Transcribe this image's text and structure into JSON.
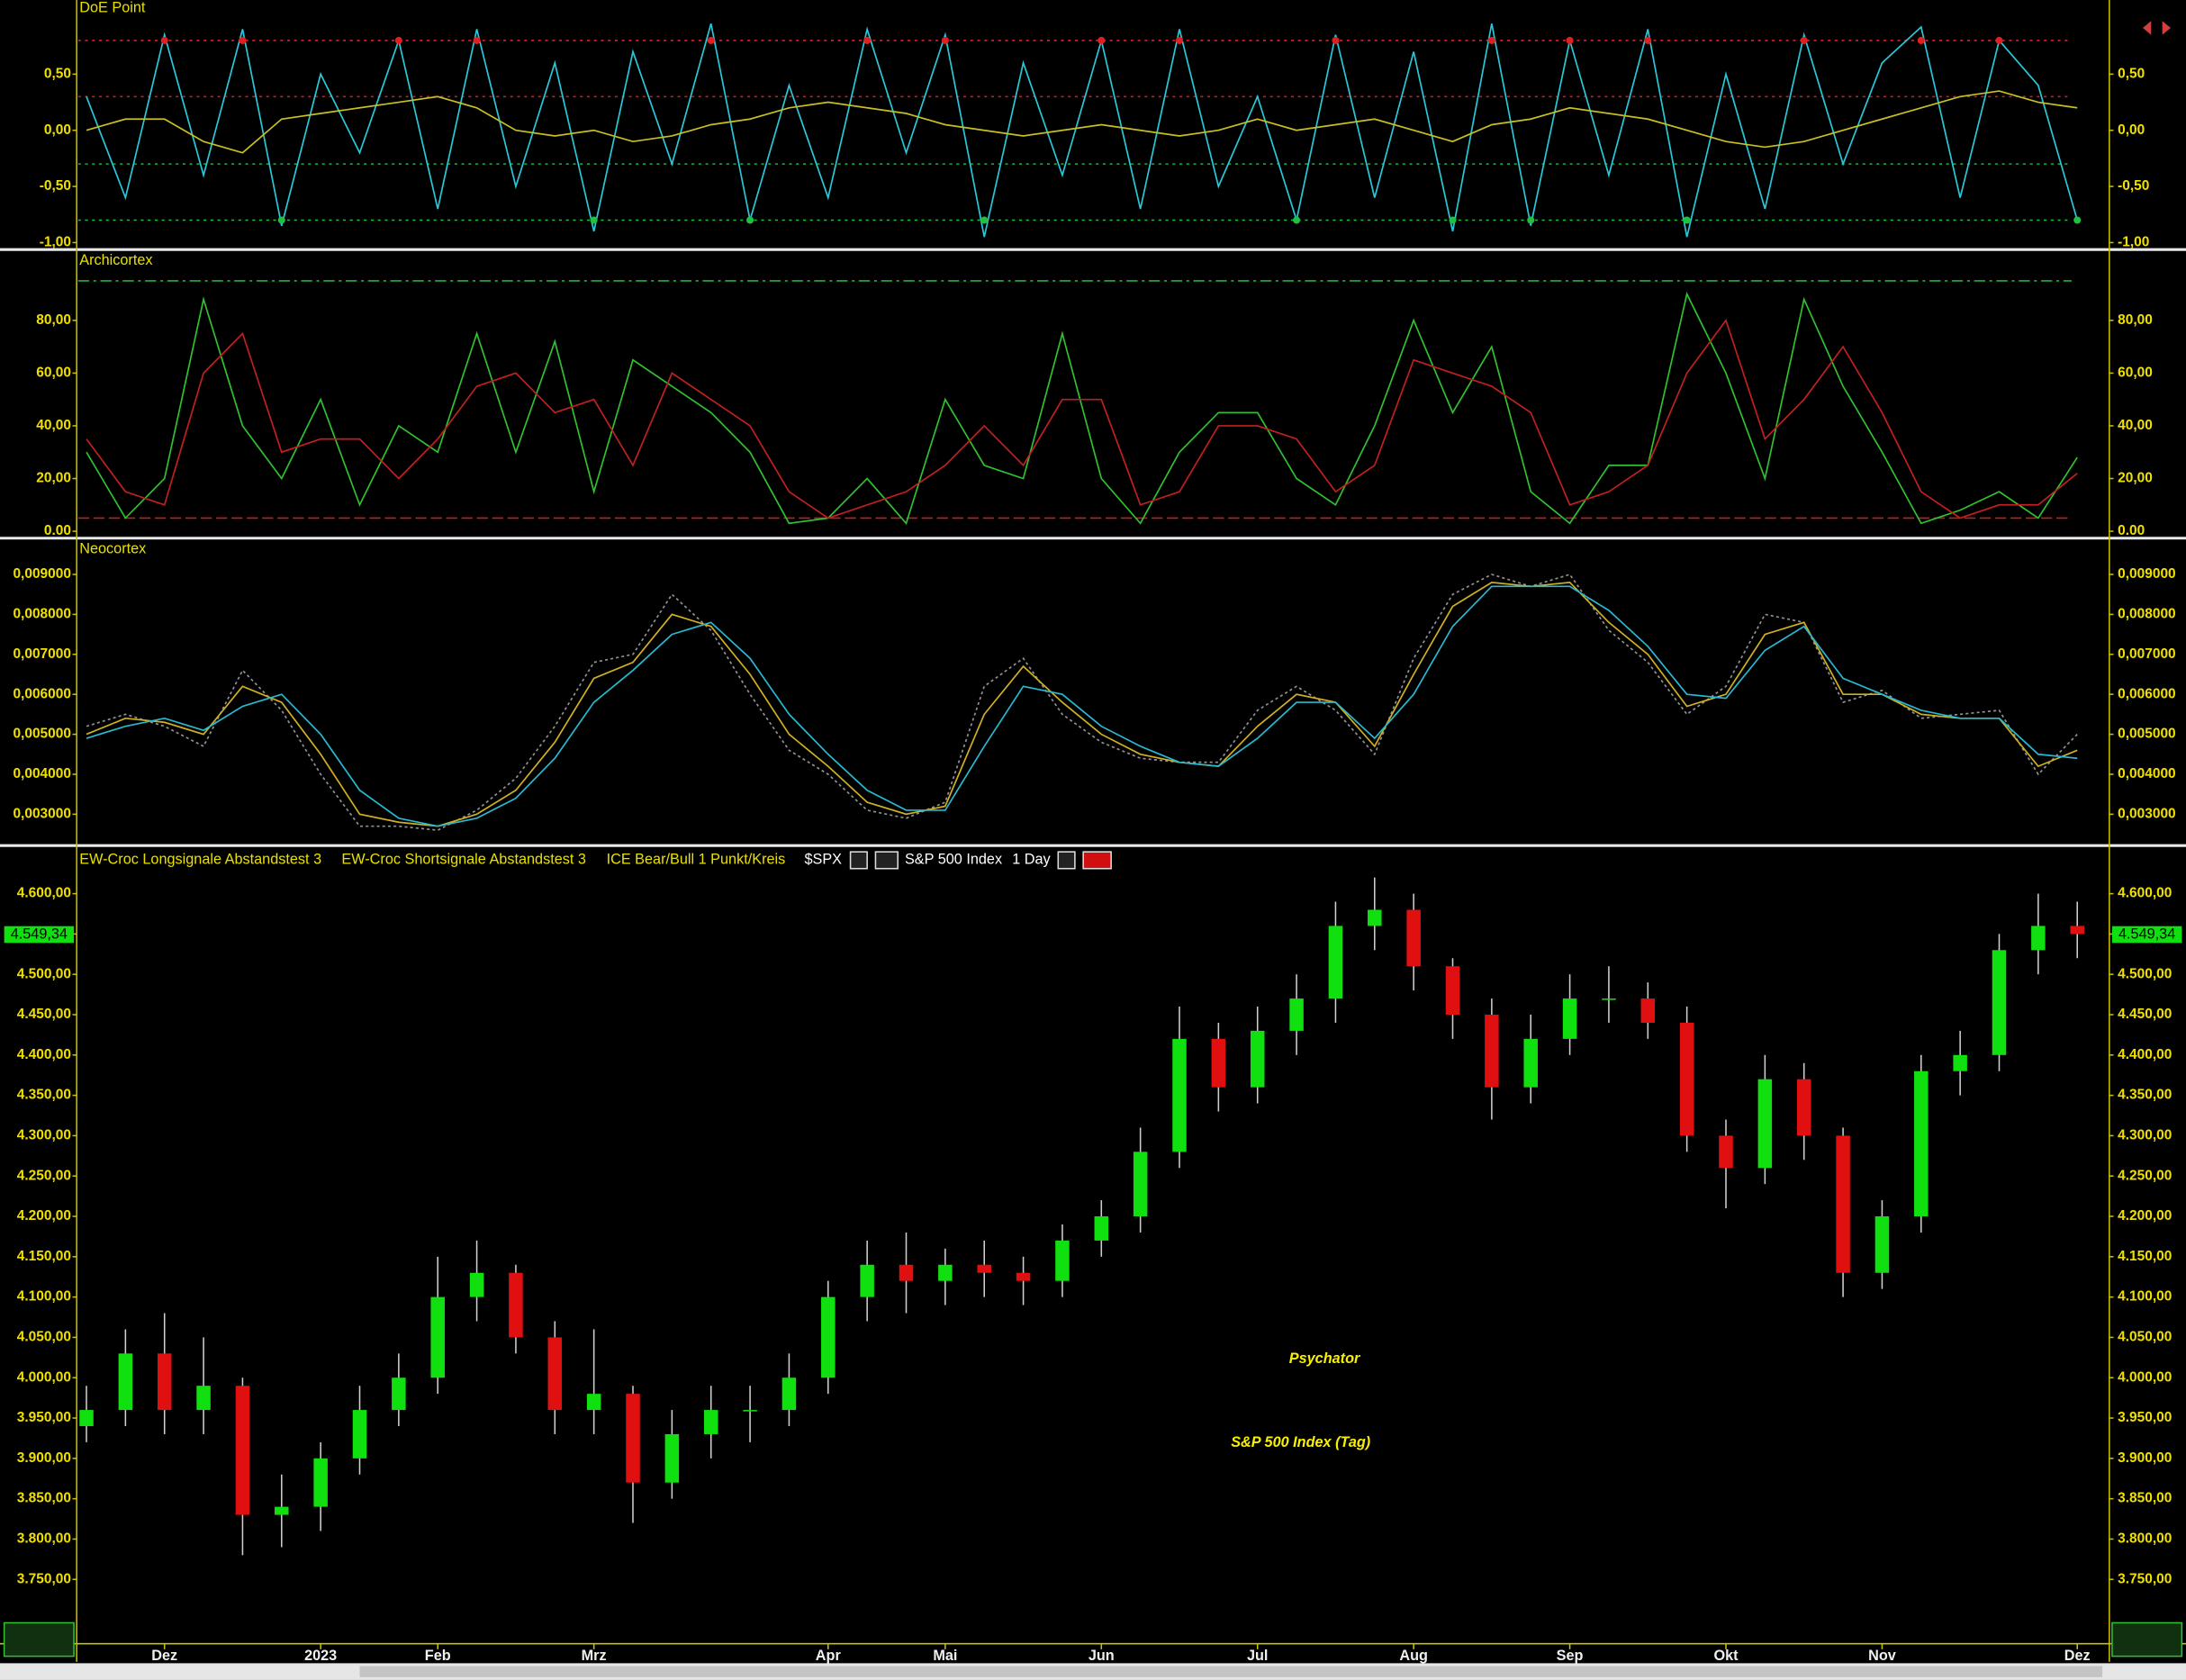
{
  "chart_data": [
    {
      "type": "line",
      "title": "DoE Point",
      "signal_dots": true,
      "ylim": [
        -1.05,
        1.16
      ],
      "yticks": [
        {
          "value": 0.5,
          "label": "0,50"
        },
        {
          "value": 0,
          "label": "0,00"
        },
        {
          "value": -0.5,
          "label": "-0,50"
        },
        {
          "value": -1,
          "label": "-1,00"
        }
      ],
      "levels": [
        {
          "value": 0.8,
          "color": "#e02020",
          "dash": "2,3"
        },
        {
          "value": 0.3,
          "color": "#c02020",
          "dash": "2,3"
        },
        {
          "value": -0.3,
          "color": "#20b040",
          "dash": "2,3"
        },
        {
          "value": -0.8,
          "color": "#20c040",
          "dash": "2,3"
        }
      ],
      "series": [
        {
          "color": "#28c8d8",
          "values": [
            0.3,
            -0.6,
            0.85,
            -0.4,
            0.9,
            -0.85,
            0.5,
            -0.2,
            0.8,
            -0.7,
            0.9,
            -0.5,
            0.6,
            -0.9,
            0.7,
            -0.3,
            0.95,
            -0.8,
            0.4,
            -0.6,
            0.9,
            -0.2,
            0.85,
            -0.95,
            0.6,
            -0.4,
            0.8,
            -0.7,
            0.9,
            -0.5,
            0.3,
            -0.8,
            0.85,
            -0.6,
            0.7,
            -0.9,
            0.95,
            -0.85,
            0.8,
            -0.4,
            0.9,
            -0.95,
            0.5,
            -0.7,
            0.85,
            -0.3,
            0.6,
            0.92,
            -0.6,
            0.8,
            0.4,
            -0.8
          ]
        },
        {
          "color": "#c8c020",
          "values": [
            0.0,
            0.1,
            0.1,
            -0.1,
            -0.2,
            0.1,
            0.15,
            0.2,
            0.25,
            0.3,
            0.2,
            0.0,
            -0.05,
            0.0,
            -0.1,
            -0.05,
            0.05,
            0.1,
            0.2,
            0.25,
            0.2,
            0.15,
            0.05,
            0.0,
            -0.05,
            0.0,
            0.05,
            0.0,
            -0.05,
            0.0,
            0.1,
            0.0,
            0.05,
            0.1,
            0.0,
            -0.1,
            0.05,
            0.1,
            0.2,
            0.15,
            0.1,
            0.0,
            -0.1,
            -0.15,
            -0.1,
            0.0,
            0.1,
            0.2,
            0.3,
            0.35,
            0.25,
            0.2
          ]
        }
      ]
    },
    {
      "type": "line",
      "title": "Archicortex",
      "ylim": [
        -2.1,
        105.8
      ],
      "yticks": [
        {
          "value": 80,
          "label": "80,00"
        },
        {
          "value": 60,
          "label": "60,00"
        },
        {
          "value": 40,
          "label": "40,00"
        },
        {
          "value": 20,
          "label": "20,00"
        },
        {
          "value": 0,
          "label": "0.00"
        }
      ],
      "levels": [
        {
          "value": 95,
          "color": "#20b040",
          "dash": "8,3,2,3"
        },
        {
          "value": 5,
          "color": "#c02020",
          "dash": "8,3"
        }
      ],
      "series": [
        {
          "color": "#30c030",
          "values": [
            30,
            5,
            20,
            88,
            40,
            20,
            50,
            10,
            40,
            30,
            75,
            30,
            72,
            15,
            65,
            55,
            45,
            30,
            3,
            5,
            20,
            3,
            50,
            25,
            20,
            75,
            20,
            3,
            30,
            45,
            45,
            20,
            10,
            40,
            80,
            45,
            70,
            15,
            3,
            25,
            25,
            90,
            60,
            20,
            88,
            55,
            30,
            3,
            8,
            15,
            5,
            28
          ]
        },
        {
          "color": "#c02020",
          "values": [
            35,
            15,
            10,
            60,
            75,
            30,
            35,
            35,
            20,
            35,
            55,
            60,
            45,
            50,
            25,
            60,
            50,
            40,
            15,
            5,
            10,
            15,
            25,
            40,
            25,
            50,
            50,
            10,
            15,
            40,
            40,
            35,
            15,
            25,
            65,
            60,
            55,
            45,
            10,
            15,
            25,
            60,
            80,
            35,
            50,
            70,
            45,
            15,
            5,
            10,
            10,
            22
          ]
        }
      ]
    },
    {
      "type": "line",
      "title": "Neocortex",
      "ylim": [
        0.002268,
        0.009837
      ],
      "yticks": [
        {
          "value": 0.009,
          "label": "0,009000"
        },
        {
          "value": 0.008,
          "label": "0,008000"
        },
        {
          "value": 0.007,
          "label": "0,007000"
        },
        {
          "value": 0.006,
          "label": "0,006000"
        },
        {
          "value": 0.005,
          "label": "0,005000"
        },
        {
          "value": 0.004,
          "label": "0,004000"
        },
        {
          "value": 0.003,
          "label": "0,003000"
        }
      ],
      "series": [
        {
          "color": "#909090",
          "dash": "2,2",
          "values": [
            0.0052,
            0.0055,
            0.0052,
            0.0047,
            0.0066,
            0.0056,
            0.004,
            0.0027,
            0.0027,
            0.0026,
            0.0031,
            0.0039,
            0.0052,
            0.0068,
            0.007,
            0.0085,
            0.0076,
            0.006,
            0.0046,
            0.004,
            0.0031,
            0.0029,
            0.0033,
            0.0062,
            0.0069,
            0.0055,
            0.0048,
            0.0044,
            0.0043,
            0.0043,
            0.0056,
            0.0062,
            0.0056,
            0.0045,
            0.0069,
            0.0085,
            0.009,
            0.0087,
            0.009,
            0.0076,
            0.0068,
            0.0055,
            0.0062,
            0.008,
            0.0078,
            0.0058,
            0.0061,
            0.0054,
            0.0055,
            0.0056,
            0.004,
            0.005
          ]
        },
        {
          "color": "#d0b020",
          "values": [
            0.005,
            0.0054,
            0.0053,
            0.005,
            0.0062,
            0.0058,
            0.0045,
            0.003,
            0.0028,
            0.0027,
            0.003,
            0.0036,
            0.0048,
            0.0064,
            0.0068,
            0.008,
            0.0077,
            0.0065,
            0.005,
            0.0042,
            0.0033,
            0.003,
            0.0032,
            0.0055,
            0.0067,
            0.0058,
            0.005,
            0.0045,
            0.0043,
            0.0042,
            0.0052,
            0.006,
            0.0058,
            0.0047,
            0.0065,
            0.0082,
            0.0088,
            0.0087,
            0.0088,
            0.0078,
            0.007,
            0.0057,
            0.006,
            0.0075,
            0.0078,
            0.006,
            0.006,
            0.0055,
            0.0054,
            0.0054,
            0.0042,
            0.0046
          ]
        },
        {
          "color": "#28b8d0",
          "values": [
            0.0049,
            0.0052,
            0.0054,
            0.0051,
            0.0057,
            0.006,
            0.005,
            0.0036,
            0.0029,
            0.0027,
            0.0029,
            0.0034,
            0.0044,
            0.0058,
            0.0066,
            0.0075,
            0.0078,
            0.0069,
            0.0055,
            0.0045,
            0.0036,
            0.0031,
            0.0031,
            0.0047,
            0.0062,
            0.006,
            0.0052,
            0.0047,
            0.0043,
            0.0042,
            0.0049,
            0.0058,
            0.0058,
            0.0049,
            0.006,
            0.0077,
            0.0087,
            0.0087,
            0.0087,
            0.0081,
            0.0072,
            0.006,
            0.0059,
            0.0071,
            0.0077,
            0.0064,
            0.006,
            0.0056,
            0.0054,
            0.0054,
            0.0045,
            0.0044
          ]
        }
      ]
    },
    {
      "type": "candlestick",
      "indicators": [
        "EW-Croc Longsignale Abstandstest 3",
        "EW-Croc Shortsignale Abstandstest 3",
        "ICE Bear/Bull 1 Punkt/Kreis"
      ],
      "symbol": "$SPX",
      "name": "S&P 500 Index",
      "interval": "1 Day",
      "title": "Psychator",
      "subtitle": "S&P 500 Index (Tag)",
      "up_color": "#10e010",
      "down_color": "#e01010",
      "last_price": {
        "value": 4549.34,
        "label": "4.549,34"
      },
      "ylim": [
        3672,
        4657
      ],
      "yticks": [
        {
          "value": 4600,
          "label": "4.600,00"
        },
        {
          "value": 4550,
          "label": "4.550,00"
        },
        {
          "value": 4500,
          "label": "4.500,00"
        },
        {
          "value": 4450,
          "label": "4.450,00"
        },
        {
          "value": 4400,
          "label": "4.400,00"
        },
        {
          "value": 4350,
          "label": "4.350,00"
        },
        {
          "value": 4300,
          "label": "4.300,00"
        },
        {
          "value": 4250,
          "label": "4.250,00"
        },
        {
          "value": 4200,
          "label": "4.200,00"
        },
        {
          "value": 4150,
          "label": "4.150,00"
        },
        {
          "value": 4100,
          "label": "4.100,00"
        },
        {
          "value": 4050,
          "label": "4.050,00"
        },
        {
          "value": 4000,
          "label": "4.000,00"
        },
        {
          "value": 3950,
          "label": "3.950,00"
        },
        {
          "value": 3900,
          "label": "3.900,00"
        },
        {
          "value": 3850,
          "label": "3.850,00"
        },
        {
          "value": 3800,
          "label": "3.800,00"
        },
        {
          "value": 3750,
          "label": "3.750,00"
        }
      ],
      "categories": [
        null,
        null,
        "Dez",
        null,
        null,
        null,
        "2023",
        null,
        null,
        "Feb",
        null,
        null,
        null,
        "Mrz",
        null,
        null,
        null,
        null,
        null,
        "Apr",
        null,
        null,
        "Mai",
        null,
        null,
        null,
        "Jun",
        null,
        null,
        null,
        "Jul",
        null,
        null,
        null,
        "Aug",
        null,
        null,
        null,
        "Sep",
        null,
        null,
        null,
        "Okt",
        null,
        null,
        null,
        "Nov",
        null,
        null,
        null,
        null,
        "Dez"
      ],
      "open": [
        3940,
        3960,
        4030,
        3960,
        3990,
        3830,
        3840,
        3900,
        3960,
        4000,
        4100,
        4130,
        4050,
        3960,
        3980,
        3870,
        3930,
        3960,
        3960,
        4000,
        4100,
        4140,
        4120,
        4140,
        4130,
        4120,
        4170,
        4200,
        4280,
        4420,
        4360,
        4430,
        4470,
        4560,
        4580,
        4510,
        4450,
        4360,
        4420,
        4470,
        4470,
        4440,
        4300,
        4260,
        4370,
        4300,
        4130,
        4200,
        4380,
        4400,
        4530,
        4560
      ],
      "high": [
        3990,
        4060,
        4080,
        4050,
        4000,
        3880,
        3920,
        3990,
        4030,
        4150,
        4170,
        4140,
        4070,
        4060,
        3990,
        3960,
        3990,
        3990,
        4030,
        4120,
        4170,
        4180,
        4160,
        4170,
        4150,
        4190,
        4220,
        4310,
        4460,
        4440,
        4460,
        4500,
        4590,
        4620,
        4600,
        4520,
        4470,
        4450,
        4500,
        4510,
        4490,
        4460,
        4320,
        4400,
        4390,
        4310,
        4220,
        4400,
        4430,
        4550,
        4600,
        4590
      ],
      "low": [
        3920,
        3940,
        3930,
        3930,
        3780,
        3790,
        3810,
        3880,
        3940,
        3980,
        4070,
        4030,
        3930,
        3930,
        3820,
        3850,
        3900,
        3920,
        3940,
        3980,
        4070,
        4080,
        4090,
        4100,
        4090,
        4100,
        4150,
        4180,
        4260,
        4330,
        4340,
        4400,
        4440,
        4530,
        4480,
        4420,
        4320,
        4340,
        4400,
        4440,
        4420,
        4280,
        4210,
        4240,
        4270,
        4100,
        4110,
        4180,
        4350,
        4380,
        4500,
        4520
      ],
      "close": [
        3960,
        4030,
        3960,
        3990,
        3830,
        3840,
        3900,
        3960,
        4000,
        4100,
        4130,
        4050,
        3960,
        3980,
        3870,
        3930,
        3960,
        3960,
        4000,
        4100,
        4140,
        4120,
        4140,
        4130,
        4120,
        4170,
        4200,
        4280,
        4420,
        4360,
        4430,
        4470,
        4560,
        4580,
        4510,
        4450,
        4360,
        4420,
        4470,
        4470,
        4440,
        4300,
        4260,
        4370,
        4300,
        4130,
        4200,
        4380,
        4400,
        4530,
        4560,
        4550
      ]
    }
  ]
}
